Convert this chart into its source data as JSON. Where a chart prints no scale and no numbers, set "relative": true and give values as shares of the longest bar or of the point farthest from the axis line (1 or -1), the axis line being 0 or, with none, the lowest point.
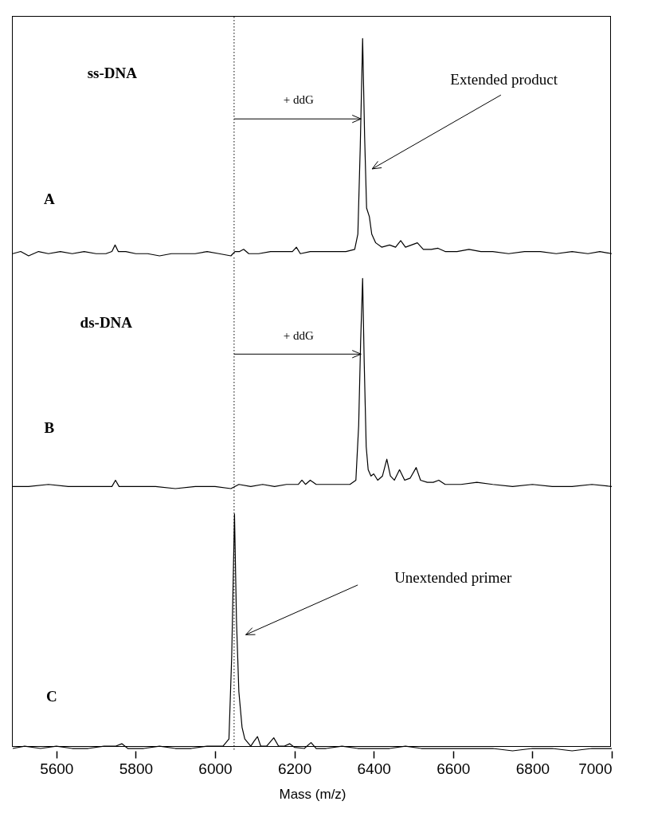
{
  "chart_data": [
    {
      "type": "line",
      "relative": true,
      "xlim": [
        5490,
        7000
      ],
      "tick_labels": false,
      "ref_lines": [
        {
          "axis": "x",
          "value": 6048,
          "line_style": "dotted"
        }
      ],
      "annotations": [
        "ss-DNA",
        "A",
        "+ ddG",
        "Extended product"
      ],
      "x": [
        5490,
        5510,
        5530,
        5555,
        5580,
        5610,
        5640,
        5670,
        5700,
        5725,
        5740,
        5748,
        5756,
        5775,
        5800,
        5830,
        5860,
        5890,
        5920,
        5950,
        5980,
        6010,
        6040,
        6050,
        6062,
        6072,
        6085,
        6110,
        6140,
        6170,
        6195,
        6205,
        6215,
        6240,
        6270,
        6300,
        6330,
        6352,
        6360,
        6366,
        6372,
        6377,
        6382,
        6389,
        6395,
        6405,
        6420,
        6440,
        6455,
        6468,
        6480,
        6495,
        6510,
        6525,
        6545,
        6562,
        6580,
        6610,
        6640,
        6670,
        6700,
        6740,
        6780,
        6820,
        6860,
        6900,
        6940,
        6970,
        7000
      ],
      "series": [
        {
          "color": "#000000",
          "values": [
            0.01,
            0.02,
            0,
            0.02,
            0.01,
            0.02,
            0.01,
            0.02,
            0.01,
            0.01,
            0.02,
            0.05,
            0.02,
            0.02,
            0.01,
            0.01,
            0,
            0.01,
            0.01,
            0.01,
            0.02,
            0.01,
            0,
            0.02,
            0.02,
            0.03,
            0.01,
            0.01,
            0.02,
            0.02,
            0.02,
            0.04,
            0.01,
            0.02,
            0.02,
            0.02,
            0.02,
            0.03,
            0.1,
            0.5,
            1,
            0.55,
            0.22,
            0.18,
            0.1,
            0.06,
            0.04,
            0.05,
            0.04,
            0.07,
            0.04,
            0.05,
            0.06,
            0.03,
            0.03,
            0.035,
            0.02,
            0.02,
            0.03,
            0.02,
            0.02,
            0.01,
            0.02,
            0.02,
            0.01,
            0.02,
            0.01,
            0.02,
            0.01
          ]
        }
      ]
    },
    {
      "type": "line",
      "relative": true,
      "xlim": [
        5490,
        7000
      ],
      "tick_labels": false,
      "ref_lines": [
        {
          "axis": "x",
          "value": 6048,
          "line_style": "dotted"
        }
      ],
      "annotations": [
        "ds-DNA",
        "B",
        "+ ddG"
      ],
      "x": [
        5490,
        5530,
        5580,
        5630,
        5680,
        5720,
        5740,
        5749,
        5758,
        5800,
        5850,
        5900,
        5950,
        6000,
        6040,
        6060,
        6090,
        6120,
        6150,
        6180,
        6210,
        6219,
        6228,
        6240,
        6255,
        6280,
        6310,
        6340,
        6355,
        6362,
        6367,
        6372,
        6376,
        6381,
        6386,
        6393,
        6400,
        6410,
        6422,
        6433,
        6442,
        6452,
        6465,
        6478,
        6492,
        6507,
        6518,
        6535,
        6550,
        6564,
        6580,
        6620,
        6660,
        6700,
        6750,
        6800,
        6850,
        6900,
        6950,
        7000
      ],
      "series": [
        {
          "color": "#000000",
          "values": [
            0.01,
            0.01,
            0.02,
            0.01,
            0.01,
            0.01,
            0.01,
            0.04,
            0.01,
            0.01,
            0.01,
            0,
            0.01,
            0.01,
            0,
            0.02,
            0.01,
            0.02,
            0.01,
            0.02,
            0.02,
            0.04,
            0.02,
            0.04,
            0.02,
            0.02,
            0.02,
            0.02,
            0.04,
            0.3,
            0.7,
            1,
            0.6,
            0.2,
            0.09,
            0.06,
            0.07,
            0.04,
            0.06,
            0.14,
            0.06,
            0.04,
            0.09,
            0.04,
            0.05,
            0.1,
            0.04,
            0.03,
            0.03,
            0.04,
            0.02,
            0.02,
            0.03,
            0.02,
            0.01,
            0.02,
            0.01,
            0.01,
            0.02,
            0.01
          ]
        }
      ]
    },
    {
      "type": "line",
      "relative": true,
      "xlim": [
        5490,
        7000
      ],
      "xticks": [
        5600,
        5800,
        6000,
        6200,
        6400,
        6600,
        6800,
        7000
      ],
      "xlabel": "Mass (m/z)",
      "tick_labels": "x",
      "ref_lines": [
        {
          "axis": "x",
          "value": 6048,
          "line_style": "dotted"
        }
      ],
      "annotations": [
        "C",
        "Unextended primer"
      ],
      "x": [
        5490,
        5520,
        5560,
        5600,
        5640,
        5680,
        5720,
        5750,
        5765,
        5780,
        5820,
        5860,
        5900,
        5940,
        5980,
        6020,
        6035,
        6042,
        6049,
        6054,
        6060,
        6068,
        6075,
        6090,
        6098,
        6107,
        6115,
        6130,
        6148,
        6160,
        6175,
        6188,
        6200,
        6225,
        6242,
        6255,
        6280,
        6320,
        6360,
        6400,
        6440,
        6480,
        6520,
        6560,
        6600,
        6650,
        6700,
        6750,
        6800,
        6850,
        6900,
        6950,
        7000
      ],
      "series": [
        {
          "color": "#000000",
          "values": [
            0.01,
            0.02,
            0.01,
            0.02,
            0.01,
            0.01,
            0.02,
            0.02,
            0.03,
            0.01,
            0.01,
            0.02,
            0.01,
            0.01,
            0.02,
            0.02,
            0.05,
            0.4,
            1,
            0.55,
            0.25,
            0.1,
            0.05,
            0.02,
            0.04,
            0.06,
            0.02,
            0.02,
            0.055,
            0.02,
            0.02,
            0.03,
            0.015,
            0.01,
            0.035,
            0.01,
            0.01,
            0.02,
            0.01,
            0.01,
            0.01,
            0.02,
            0.01,
            0.01,
            0.01,
            0.01,
            0.01,
            0,
            0.01,
            0.01,
            0,
            0.01,
            0.01
          ]
        }
      ]
    }
  ]
}
